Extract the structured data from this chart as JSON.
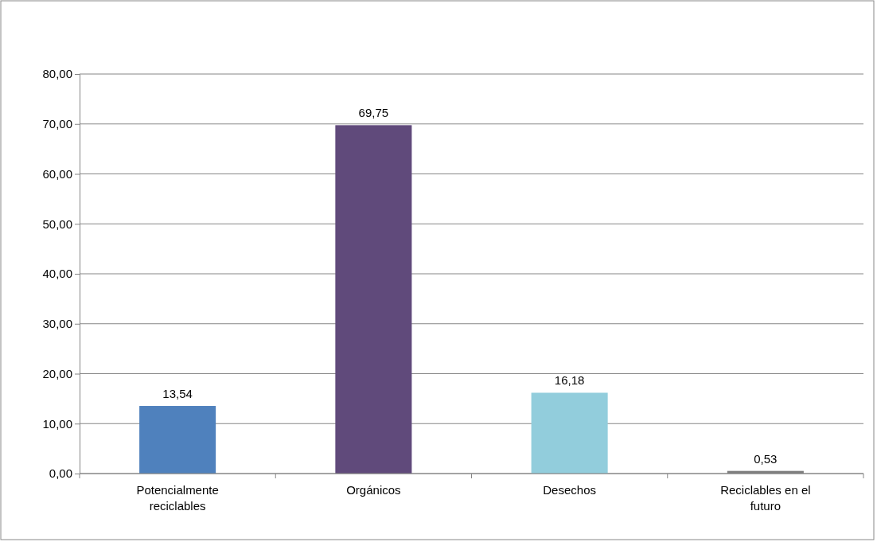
{
  "chart_data": {
    "type": "bar",
    "categories": [
      "Potencialmente reciclables",
      "Orgánicos",
      "Desechos",
      "Reciclables en el futuro"
    ],
    "values": [
      13.54,
      69.75,
      16.18,
      0.53
    ],
    "colors": [
      "#4f81bd",
      "#604a7b",
      "#92cddc",
      "#7f7f7f"
    ],
    "value_labels": [
      "13,54",
      "69,75",
      "16,18",
      "0,53"
    ],
    "ylim": [
      0,
      80
    ],
    "yticks": [
      {
        "value": 0,
        "label": "0,00"
      },
      {
        "value": 10,
        "label": "10,00"
      },
      {
        "value": 20,
        "label": "20,00"
      },
      {
        "value": 30,
        "label": "30,00"
      },
      {
        "value": 40,
        "label": "40,00"
      },
      {
        "value": 50,
        "label": "50,00"
      },
      {
        "value": 60,
        "label": "60,00"
      },
      {
        "value": 70,
        "label": "70,00"
      },
      {
        "value": 80,
        "label": "80,00"
      }
    ],
    "grid": "y"
  }
}
